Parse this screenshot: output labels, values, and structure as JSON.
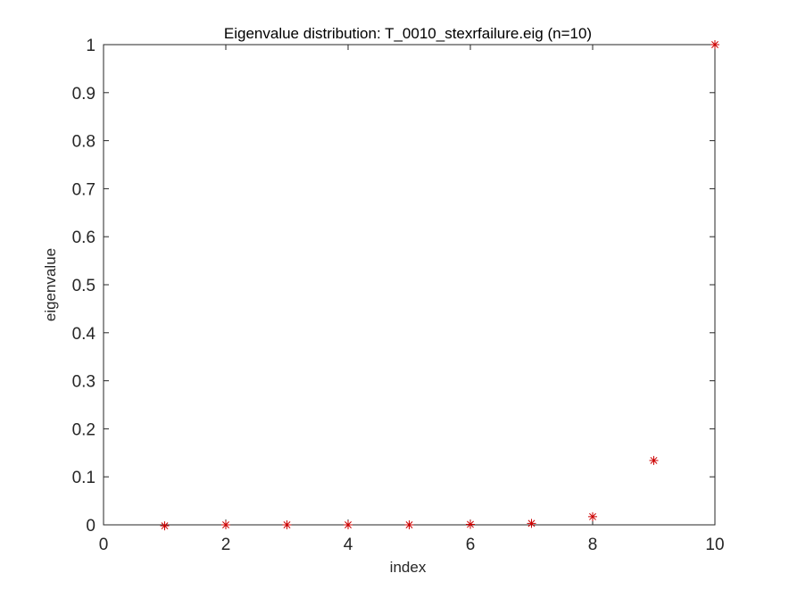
{
  "chart_data": {
    "type": "scatter",
    "title": "Eigenvalue distribution: T_0010_stexrfailure.eig (n=10)",
    "xlabel": "index",
    "ylabel": "eigenvalue",
    "xlim": [
      0,
      10
    ],
    "ylim": [
      0,
      1
    ],
    "xticks": [
      0,
      2,
      4,
      6,
      8,
      10
    ],
    "xtick_labels": [
      "0",
      "2",
      "4",
      "6",
      "8",
      "10"
    ],
    "yticks": [
      0,
      0.1,
      0.2,
      0.3,
      0.4,
      0.5,
      0.6,
      0.7,
      0.8,
      0.9,
      1
    ],
    "ytick_labels": [
      "0",
      "0.1",
      "0.2",
      "0.3",
      "0.4",
      "0.5",
      "0.6",
      "0.7",
      "0.8",
      "0.9",
      "1"
    ],
    "grid": false,
    "marker": "asterisk",
    "marker_color": "#cc0000",
    "axis_color": "#262626",
    "series": [
      {
        "x": [
          1,
          2,
          3,
          4,
          5,
          6,
          7,
          8,
          9,
          10
        ],
        "y": [
          -0.002,
          0.0,
          0.0,
          0.0,
          0.0,
          0.001,
          0.003,
          0.017,
          0.134,
          1.0
        ]
      }
    ]
  }
}
